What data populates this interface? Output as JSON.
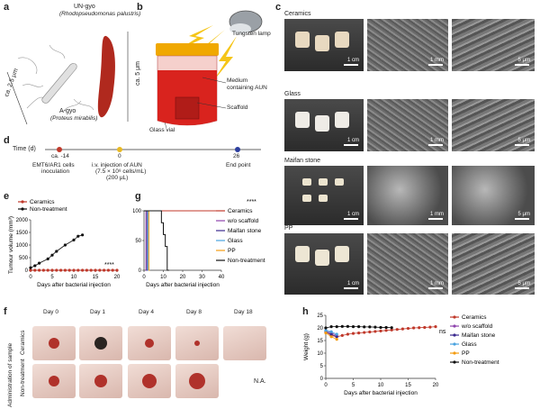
{
  "panels": {
    "a": "a",
    "b": "b",
    "c": "c",
    "d": "d",
    "e": "e",
    "f": "f",
    "g": "g",
    "h": "h"
  },
  "panel_a": {
    "un_gyo": "UN-gyo",
    "un_gyo_species": "(Rhodopseudomonas palustris)",
    "a_gyo": "A-gyo",
    "a_gyo_species": "(Proteus mirabilis)",
    "dim_5um": "ca. 5 μm",
    "dim_25um": "ca. 2.5 μm"
  },
  "panel_b": {
    "tungsten": "Tungsten lamp",
    "medium": "Medium",
    "medium2": "containing AUN",
    "scaffold": "Scaffold",
    "vial": "Glass vial"
  },
  "panel_c": {
    "rows": [
      {
        "label": "Ceramics",
        "bars": [
          "1 cm",
          "1 mm",
          "5 μm"
        ]
      },
      {
        "label": "Glass",
        "bars": [
          "1 cm",
          "1 mm",
          "5 μm"
        ]
      },
      {
        "label": "Maifan stone",
        "bars": [
          "1 cm",
          "1 mm",
          "5 μm"
        ]
      },
      {
        "label": "PP",
        "bars": [
          "1 cm",
          "1 mm",
          "5 μm"
        ]
      }
    ]
  },
  "panel_d": {
    "axis_label": "Time (d)",
    "points": [
      {
        "day": "ca. -14",
        "desc1": "EMT6/AR1 cells",
        "desc2": "inoculation",
        "color": "#c0392b"
      },
      {
        "day": "0",
        "desc1": "i.v. injection of AUN",
        "desc2": "(7.5 × 10⁸ cells/mL)",
        "desc3": "(200 μL)",
        "color": "#e8b923"
      },
      {
        "day": "26",
        "desc1": "End point",
        "color": "#2c3e9e"
      }
    ]
  },
  "chart_data": [
    {
      "type": "line",
      "title": "",
      "xlabel": "Days after bacterial injection",
      "ylabel": "Tumour volume (mm³)",
      "xlim": [
        0,
        20
      ],
      "ylim": [
        0,
        2000
      ],
      "xticks": [
        0,
        5,
        10,
        15,
        20
      ],
      "yticks": [
        0,
        500,
        1000,
        1500,
        2000
      ],
      "annotation": "****",
      "series": [
        {
          "name": "Ceramics",
          "color": "#c0392b",
          "x": [
            0,
            1,
            2,
            3,
            4,
            5,
            6,
            7,
            8,
            9,
            10,
            11,
            12,
            13,
            14,
            15,
            16,
            17,
            18,
            19,
            20
          ],
          "y": [
            0,
            0,
            0,
            0,
            0,
            0,
            0,
            0,
            0,
            0,
            0,
            0,
            0,
            0,
            0,
            0,
            0,
            0,
            0,
            0,
            0
          ]
        },
        {
          "name": "Non-treatment",
          "color": "#111111",
          "x": [
            0,
            1,
            2,
            4,
            5,
            6,
            8,
            10,
            11,
            12
          ],
          "y": [
            100,
            180,
            280,
            450,
            600,
            750,
            1000,
            1200,
            1350,
            1400
          ]
        }
      ]
    },
    {
      "type": "line",
      "title": "",
      "xlabel": "Days after bacterial injection",
      "ylabel": "Survival (%)",
      "xlim": [
        0,
        40
      ],
      "ylim": [
        0,
        100
      ],
      "xticks": [
        0,
        10,
        20,
        30,
        40
      ],
      "yticks": [
        0,
        50,
        100
      ],
      "annotation": "****",
      "series": [
        {
          "name": "Ceramics",
          "color": "#c0392b",
          "x": [
            0,
            40
          ],
          "y": [
            100,
            100
          ]
        },
        {
          "name": "w/o scaffold",
          "color": "#8e44ad",
          "x": [
            0,
            1,
            1,
            2
          ],
          "y": [
            100,
            100,
            0,
            0
          ]
        },
        {
          "name": "Maifan stone",
          "color": "#3b2a8f",
          "x": [
            0,
            1.5,
            1.5,
            2
          ],
          "y": [
            100,
            100,
            0,
            0
          ]
        },
        {
          "name": "Glass",
          "color": "#4aa3df",
          "x": [
            0,
            2,
            2,
            3
          ],
          "y": [
            100,
            100,
            0,
            0
          ]
        },
        {
          "name": "PP",
          "color": "#f39c12",
          "x": [
            0,
            2.5,
            2.5,
            3
          ],
          "y": [
            100,
            100,
            0,
            0
          ]
        },
        {
          "name": "Non-treatment",
          "color": "#111111",
          "x": [
            0,
            9,
            9,
            10,
            10,
            11,
            11,
            12,
            12,
            13
          ],
          "y": [
            100,
            100,
            80,
            80,
            60,
            60,
            40,
            40,
            0,
            0
          ]
        }
      ]
    },
    {
      "type": "line",
      "title": "",
      "xlabel": "Days after bacterial injection",
      "ylabel": "Weight (g)",
      "xlim": [
        0,
        20
      ],
      "ylim": [
        0,
        25
      ],
      "xticks": [
        0,
        5,
        10,
        15,
        20
      ],
      "yticks": [
        0,
        5,
        10,
        15,
        20,
        25
      ],
      "annotation": "ns",
      "series": [
        {
          "name": "Ceramics",
          "color": "#c0392b",
          "x": [
            0,
            1,
            2,
            3,
            4,
            5,
            6,
            7,
            8,
            9,
            10,
            11,
            12,
            13,
            14,
            15,
            16,
            17,
            18,
            19,
            20
          ],
          "y": [
            18.5,
            17,
            16.5,
            17,
            17.5,
            17.8,
            18,
            18.2,
            18.4,
            18.6,
            18.8,
            19,
            19.2,
            19.4,
            19.6,
            19.8,
            20,
            20.1,
            20.2,
            20.3,
            20.5
          ]
        },
        {
          "name": "w/o scaffold",
          "color": "#8e44ad",
          "x": [
            0,
            1,
            2
          ],
          "y": [
            19,
            18,
            17
          ]
        },
        {
          "name": "Maifan stone",
          "color": "#3b2a8f",
          "x": [
            0,
            1,
            2
          ],
          "y": [
            18.5,
            17.5,
            16.5
          ]
        },
        {
          "name": "Glass",
          "color": "#4aa3df",
          "x": [
            0,
            1,
            2
          ],
          "y": [
            19,
            18.5,
            17.5
          ]
        },
        {
          "name": "PP",
          "color": "#f39c12",
          "x": [
            0,
            1,
            2
          ],
          "y": [
            18,
            16.5,
            15.5
          ]
        },
        {
          "name": "Non-treatment",
          "color": "#111111",
          "x": [
            0,
            1,
            2,
            3,
            4,
            5,
            6,
            7,
            8,
            9,
            10,
            11,
            12
          ],
          "y": [
            20,
            20.5,
            20.5,
            20.6,
            20.6,
            20.5,
            20.5,
            20.4,
            20.4,
            20.3,
            20.2,
            20.2,
            20.1
          ]
        }
      ]
    }
  ],
  "panel_f": {
    "days": [
      "Day 0",
      "Day 1",
      "Day 4",
      "Day 8",
      "Day 18"
    ],
    "row_title": "Administration of sample",
    "rows": [
      "Ceramics",
      "Non-treatment"
    ],
    "na": "N.A."
  }
}
